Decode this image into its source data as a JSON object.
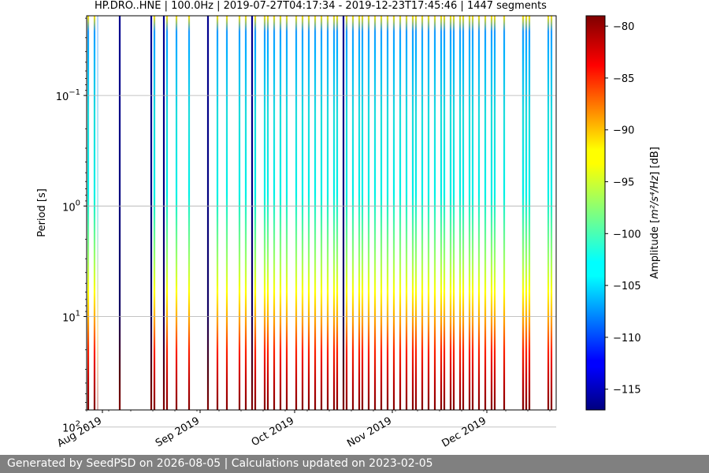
{
  "chart_data": {
    "type": "heatmap",
    "title": "HP.DRO..HNE | 100.0Hz | 2019-07-27T04:17:34 - 2019-12-23T17:45:46 | 1447 segments",
    "ylabel": "Period [s]",
    "y_scale": "log",
    "y_inverted": true,
    "ylim": [
      0.019,
      70
    ],
    "y_ticks": [
      {
        "value": 0.1,
        "base": "10",
        "exp": "−1"
      },
      {
        "value": 1,
        "base": "10",
        "exp": "0"
      },
      {
        "value": 10,
        "base": "10",
        "exp": "1"
      },
      {
        "value": 100,
        "base": "10",
        "exp": "2"
      }
    ],
    "xlim": [
      "2019-07-27",
      "2019-12-23"
    ],
    "x_ticks": [
      {
        "date": "2019-08-01",
        "label": "Aug 2019"
      },
      {
        "date": "2019-09-01",
        "label": "Sep 2019"
      },
      {
        "date": "2019-10-01",
        "label": "Oct 2019"
      },
      {
        "date": "2019-11-01",
        "label": "Nov 2019"
      },
      {
        "date": "2019-12-01",
        "label": "Dec 2019"
      }
    ],
    "grid": true,
    "colorbar": {
      "label_prefix": "Amplitude [",
      "label_unit": "m²/s⁴/Hz",
      "label_suffix": "] [dB]",
      "min": -117,
      "max": -79,
      "ticks": [
        -80,
        -85,
        -90,
        -95,
        -100,
        -105,
        -110,
        -115
      ],
      "tick_labels": [
        "−80",
        "−85",
        "−90",
        "−95",
        "−100",
        "−105",
        "−110",
        "−115"
      ],
      "colormap": "jet"
    },
    "segments": [
      {
        "start": "2019-07-27",
        "end": "2019-07-28",
        "style": "full"
      },
      {
        "start": "2019-07-29",
        "end": "2019-07-30",
        "style": "full"
      },
      {
        "start": "2019-07-30",
        "end": "2019-07-31",
        "style": "faint"
      },
      {
        "start": "2019-08-06",
        "end": "2019-08-07",
        "style": "dark"
      },
      {
        "start": "2019-08-16",
        "end": "2019-08-17",
        "style": "dark"
      },
      {
        "start": "2019-08-17",
        "end": "2019-08-18",
        "style": "full"
      },
      {
        "start": "2019-08-20",
        "end": "2019-08-21",
        "style": "dark"
      },
      {
        "start": "2019-08-21",
        "end": "2019-08-22",
        "style": "full"
      },
      {
        "start": "2019-08-24",
        "end": "2019-08-25",
        "style": "full"
      },
      {
        "start": "2019-08-28",
        "end": "2019-08-29",
        "style": "full"
      },
      {
        "start": "2019-09-03",
        "end": "2019-09-04",
        "style": "dark"
      },
      {
        "start": "2019-09-06",
        "end": "2019-09-07",
        "style": "full"
      },
      {
        "start": "2019-09-09",
        "end": "2019-09-10",
        "style": "full"
      },
      {
        "start": "2019-09-13",
        "end": "2019-09-14",
        "style": "full"
      },
      {
        "start": "2019-09-15",
        "end": "2019-09-16",
        "style": "full"
      },
      {
        "start": "2019-09-17",
        "end": "2019-09-18",
        "style": "dark"
      },
      {
        "start": "2019-09-18",
        "end": "2019-09-19",
        "style": "full"
      },
      {
        "start": "2019-09-21",
        "end": "2019-09-22",
        "style": "full"
      },
      {
        "start": "2019-09-22",
        "end": "2019-09-23",
        "style": "full"
      },
      {
        "start": "2019-09-24",
        "end": "2019-09-25",
        "style": "full"
      },
      {
        "start": "2019-09-26",
        "end": "2019-09-27",
        "style": "full"
      },
      {
        "start": "2019-09-28",
        "end": "2019-09-29",
        "style": "full"
      },
      {
        "start": "2019-10-01",
        "end": "2019-10-02",
        "style": "full"
      },
      {
        "start": "2019-10-03",
        "end": "2019-10-04",
        "style": "full"
      },
      {
        "start": "2019-10-05",
        "end": "2019-10-06",
        "style": "full"
      },
      {
        "start": "2019-10-07",
        "end": "2019-10-08",
        "style": "full"
      },
      {
        "start": "2019-10-09",
        "end": "2019-10-10",
        "style": "full"
      },
      {
        "start": "2019-10-11",
        "end": "2019-10-12",
        "style": "full"
      },
      {
        "start": "2019-10-13",
        "end": "2019-10-14",
        "style": "full"
      },
      {
        "start": "2019-10-14",
        "end": "2019-10-15",
        "style": "full"
      },
      {
        "start": "2019-10-16",
        "end": "2019-10-17",
        "style": "dark"
      },
      {
        "start": "2019-10-17",
        "end": "2019-10-18",
        "style": "full"
      },
      {
        "start": "2019-10-19",
        "end": "2019-10-20",
        "style": "full"
      },
      {
        "start": "2019-10-21",
        "end": "2019-10-22",
        "style": "full"
      },
      {
        "start": "2019-10-22",
        "end": "2019-10-23",
        "style": "full"
      },
      {
        "start": "2019-10-24",
        "end": "2019-10-25",
        "style": "full"
      },
      {
        "start": "2019-10-26",
        "end": "2019-10-27",
        "style": "full"
      },
      {
        "start": "2019-10-28",
        "end": "2019-10-29",
        "style": "full"
      },
      {
        "start": "2019-10-30",
        "end": "2019-10-31",
        "style": "full"
      },
      {
        "start": "2019-11-01",
        "end": "2019-11-02",
        "style": "full"
      },
      {
        "start": "2019-11-03",
        "end": "2019-11-04",
        "style": "full"
      },
      {
        "start": "2019-11-05",
        "end": "2019-11-06",
        "style": "full"
      },
      {
        "start": "2019-11-07",
        "end": "2019-11-08",
        "style": "full"
      },
      {
        "start": "2019-11-08",
        "end": "2019-11-09",
        "style": "full"
      },
      {
        "start": "2019-11-10",
        "end": "2019-11-11",
        "style": "full"
      },
      {
        "start": "2019-11-12",
        "end": "2019-11-13",
        "style": "full"
      },
      {
        "start": "2019-11-14",
        "end": "2019-11-15",
        "style": "full"
      },
      {
        "start": "2019-11-16",
        "end": "2019-11-17",
        "style": "full"
      },
      {
        "start": "2019-11-17",
        "end": "2019-11-18",
        "style": "full"
      },
      {
        "start": "2019-11-19",
        "end": "2019-11-20",
        "style": "full"
      },
      {
        "start": "2019-11-20",
        "end": "2019-11-21",
        "style": "full"
      },
      {
        "start": "2019-11-22",
        "end": "2019-11-23",
        "style": "full"
      },
      {
        "start": "2019-11-23",
        "end": "2019-11-24",
        "style": "full"
      },
      {
        "start": "2019-11-25",
        "end": "2019-11-26",
        "style": "full"
      },
      {
        "start": "2019-11-26",
        "end": "2019-11-27",
        "style": "full"
      },
      {
        "start": "2019-11-28",
        "end": "2019-11-29",
        "style": "full"
      },
      {
        "start": "2019-11-30",
        "end": "2019-12-01",
        "style": "full"
      },
      {
        "start": "2019-12-02",
        "end": "2019-12-03",
        "style": "full"
      },
      {
        "start": "2019-12-03",
        "end": "2019-12-04",
        "style": "full"
      },
      {
        "start": "2019-12-06",
        "end": "2019-12-07",
        "style": "full"
      },
      {
        "start": "2019-12-12",
        "end": "2019-12-13",
        "style": "full"
      },
      {
        "start": "2019-12-12",
        "end": "2019-12-13",
        "style": "full"
      },
      {
        "start": "2019-12-13",
        "end": "2019-12-14",
        "style": "full"
      },
      {
        "start": "2019-12-14",
        "end": "2019-12-15",
        "style": "full"
      },
      {
        "start": "2019-12-20",
        "end": "2019-12-21",
        "style": "full"
      },
      {
        "start": "2019-12-21",
        "end": "2019-12-22",
        "style": "full"
      }
    ]
  },
  "footer": {
    "text": "Generated by SeedPSD on 2026-08-05 | Calculations updated on 2023-02-05"
  }
}
